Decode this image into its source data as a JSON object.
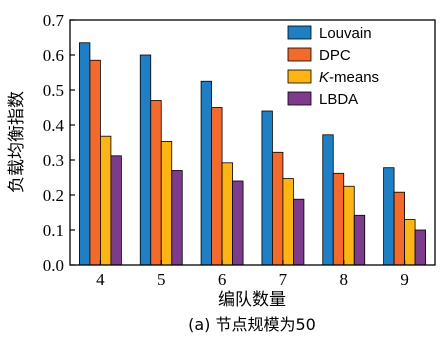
{
  "chart_data": {
    "type": "bar",
    "title": "",
    "caption": "(a) 节点规模为50",
    "xlabel": "编队数量",
    "ylabel": "负载均衡指数",
    "categories": [
      "4",
      "5",
      "6",
      "7",
      "8",
      "9"
    ],
    "ylim": [
      0,
      0.7
    ],
    "yticks": [
      "0.0",
      "0.1",
      "0.2",
      "0.3",
      "0.4",
      "0.5",
      "0.6",
      "0.7"
    ],
    "legend_position": "top-right",
    "series": [
      {
        "name": "Louvain",
        "name_suffix": "",
        "color": "#1f7fc4",
        "values": [
          0.635,
          0.6,
          0.525,
          0.44,
          0.372,
          0.278
        ]
      },
      {
        "name": "DPC",
        "name_suffix": "",
        "color": "#f26b2c",
        "values": [
          0.585,
          0.47,
          0.45,
          0.322,
          0.262,
          0.208
        ]
      },
      {
        "name": "K",
        "name_suffix": "-means",
        "color": "#fcb514",
        "values": [
          0.368,
          0.353,
          0.292,
          0.247,
          0.225,
          0.13
        ]
      },
      {
        "name": "LBDA",
        "name_suffix": "",
        "color": "#7d3b8c",
        "values": [
          0.312,
          0.27,
          0.24,
          0.188,
          0.142,
          0.1
        ]
      }
    ]
  }
}
